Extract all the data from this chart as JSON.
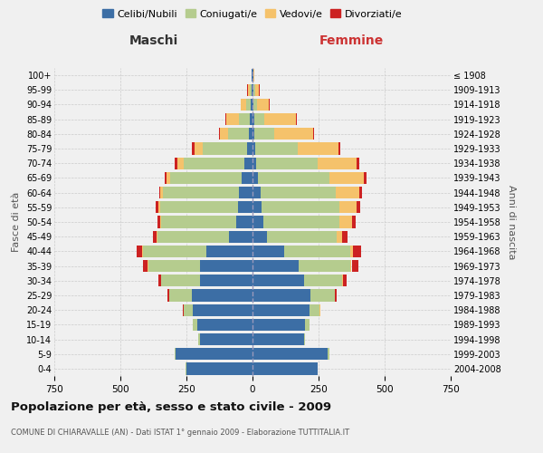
{
  "age_groups": [
    "0-4",
    "5-9",
    "10-14",
    "15-19",
    "20-24",
    "25-29",
    "30-34",
    "35-39",
    "40-44",
    "45-49",
    "50-54",
    "55-59",
    "60-64",
    "65-69",
    "70-74",
    "75-79",
    "80-84",
    "85-89",
    "90-94",
    "95-99",
    "100+"
  ],
  "birth_years": [
    "2004-2008",
    "1999-2003",
    "1994-1998",
    "1989-1993",
    "1984-1988",
    "1979-1983",
    "1974-1978",
    "1969-1973",
    "1964-1968",
    "1959-1963",
    "1954-1958",
    "1949-1953",
    "1944-1948",
    "1939-1943",
    "1934-1938",
    "1929-1933",
    "1924-1928",
    "1919-1923",
    "1914-1918",
    "1909-1913",
    "≤ 1908"
  ],
  "male_celibi": [
    250,
    290,
    200,
    210,
    225,
    230,
    200,
    200,
    175,
    90,
    60,
    55,
    50,
    40,
    30,
    20,
    12,
    10,
    8,
    4,
    2
  ],
  "male_coniugati": [
    3,
    5,
    5,
    15,
    35,
    85,
    145,
    195,
    240,
    270,
    285,
    295,
    290,
    270,
    230,
    170,
    80,
    40,
    15,
    6,
    2
  ],
  "male_vedovi": [
    0,
    0,
    0,
    0,
    0,
    1,
    1,
    1,
    2,
    3,
    4,
    5,
    8,
    15,
    25,
    30,
    30,
    50,
    20,
    8,
    1
  ],
  "male_divorziati": [
    0,
    0,
    0,
    1,
    2,
    5,
    10,
    18,
    20,
    15,
    12,
    12,
    6,
    8,
    10,
    10,
    5,
    2,
    2,
    2,
    0
  ],
  "female_celibi": [
    245,
    285,
    195,
    200,
    215,
    220,
    195,
    175,
    120,
    55,
    40,
    35,
    30,
    20,
    15,
    10,
    8,
    8,
    5,
    4,
    2
  ],
  "female_coniugati": [
    3,
    5,
    5,
    15,
    40,
    90,
    145,
    195,
    250,
    265,
    290,
    295,
    285,
    270,
    230,
    160,
    75,
    35,
    12,
    5,
    2
  ],
  "female_vedovi": [
    0,
    0,
    0,
    0,
    1,
    2,
    3,
    5,
    10,
    20,
    45,
    65,
    90,
    130,
    150,
    155,
    145,
    120,
    45,
    15,
    3
  ],
  "female_divorziati": [
    0,
    0,
    0,
    1,
    2,
    5,
    12,
    25,
    30,
    20,
    15,
    12,
    10,
    10,
    8,
    8,
    5,
    5,
    2,
    2,
    0
  ],
  "color_celibi": "#3c6ea5",
  "color_coniugati": "#b5cc8e",
  "color_vedovi": "#f5c26b",
  "color_divorziati": "#cc2222",
  "bg_color": "#f0f0f0",
  "title": "Popolazione per età, sesso e stato civile - 2009",
  "subtitle": "COMUNE DI CHIARAVALLE (AN) - Dati ISTAT 1° gennaio 2009 - Elaborazione TUTTITALIA.IT",
  "xlabel_left": "Maschi",
  "xlabel_right": "Femmine",
  "ylabel_left": "Fasce di età",
  "ylabel_right": "Anni di nascita",
  "xlim": 750,
  "xticks": [
    -750,
    -500,
    -250,
    0,
    250,
    500,
    750
  ],
  "legend_labels": [
    "Celibi/Nubili",
    "Coniugati/e",
    "Vedovi/e",
    "Divorziati/e"
  ]
}
